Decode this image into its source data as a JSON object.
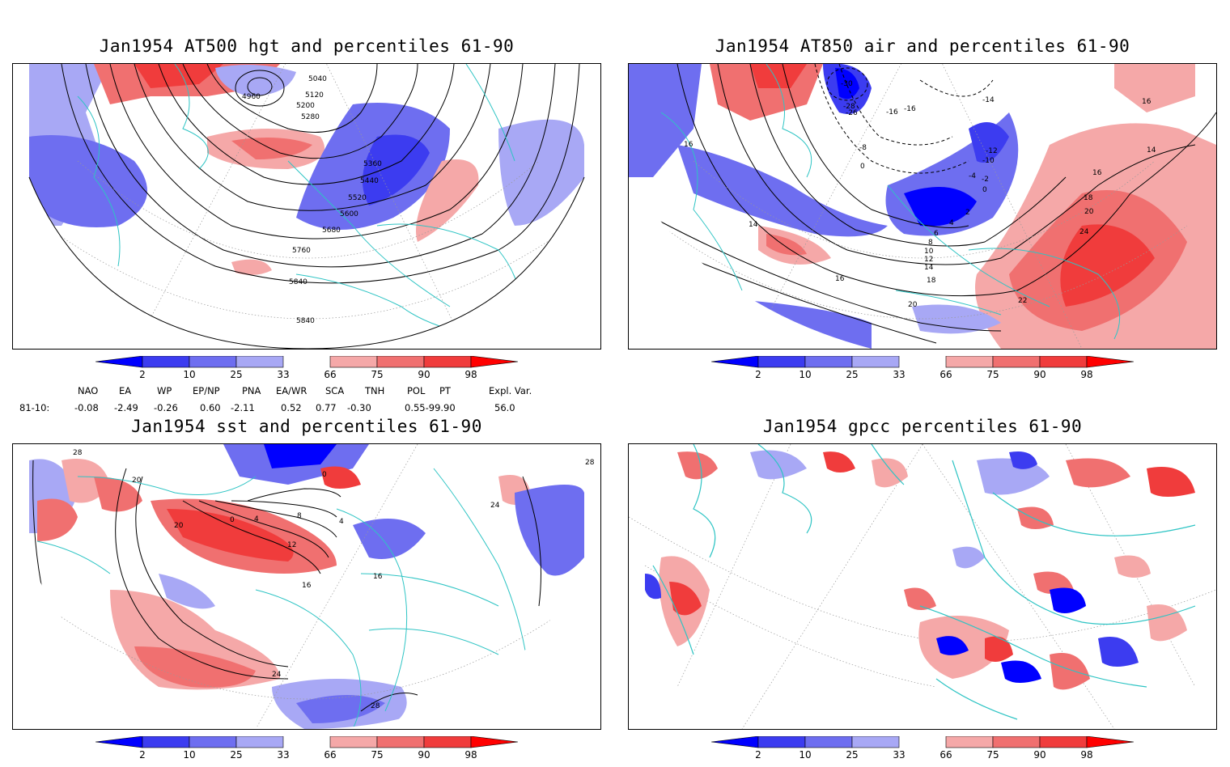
{
  "panels": [
    {
      "title": "Jan1954 AT500 hgt and percentiles 61-90",
      "contour_labels": [
        "5040",
        "4960",
        "5120",
        "5200",
        "5280",
        "5360",
        "5440",
        "5520",
        "5600",
        "5680",
        "5760",
        "5840",
        "5840"
      ]
    },
    {
      "title": "Jan1954 AT850 air and percentiles 61-90",
      "contour_labels": [
        "-30",
        "-28",
        "-26",
        "-16",
        "-16",
        "-14",
        "-12",
        "-10",
        "-8",
        "-4",
        "-2",
        "0",
        "0",
        "2",
        "4",
        "6",
        "8",
        "10",
        "12",
        "14",
        "14",
        "16",
        "16",
        "16",
        "18",
        "18",
        "20",
        "20",
        "22",
        "24",
        "14",
        "16"
      ]
    },
    {
      "title": "Jan1954 sst and percentiles 61-90",
      "contour_labels": [
        "28",
        "20",
        "20",
        "0",
        "4",
        "8",
        "12",
        "16",
        "16",
        "24",
        "28",
        "24",
        "28",
        "0",
        "4"
      ]
    },
    {
      "title": "Jan1954 gpcc percentiles 61-90",
      "contour_labels": []
    }
  ],
  "colorbar": {
    "ticks": [
      "2",
      "10",
      "25",
      "33",
      "66",
      "75",
      "90",
      "98"
    ],
    "colors": {
      "blue_strong": "#0000ff",
      "blue_mid": "#3c3cf0",
      "blue_light": "#6e6ef0",
      "blue_pale": "#a8a8f5",
      "red_pale": "#f5a8a8",
      "red_light": "#f07070",
      "red_mid": "#f03c3c",
      "red_strong": "#ff0000",
      "coast": "#2ec4c4"
    }
  },
  "indices": {
    "header": [
      "NAO",
      "EA",
      "WP",
      "EP/NP",
      "PNA",
      "EA/WR",
      "SCA",
      "TNH",
      "POL",
      "PT",
      "Expl. Var."
    ],
    "row_label": "81-10:",
    "values": [
      "-0.08",
      "-2.49",
      "-0.26",
      "0.60",
      "-2.11",
      "0.52",
      "0.77",
      "-0.30",
      "0.55-99.90",
      "",
      "56.0"
    ]
  }
}
